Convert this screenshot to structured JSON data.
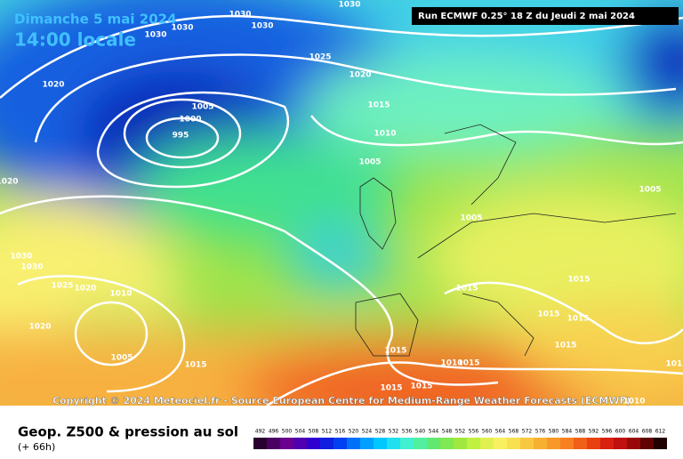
{
  "header": {
    "date": "Dimanche 5 mai 2024",
    "time": "14:00 locale",
    "run": "Run ECMWF 0.25° 18 Z du Jeudi 2 mai 2024"
  },
  "copyright": "Copyright © 2024 Meteociel.fr - Source European Centre for Medium-Range Weather Forecasts (ECMWF)",
  "footer": {
    "title": "Geop. Z500 & pression au sol",
    "lead": "(+ 66h)"
  },
  "isobar_labels": [
    "1030",
    "1030",
    "1030",
    "1030",
    "1030",
    "1025",
    "1020",
    "1020",
    "1005",
    "1000",
    "995",
    "1015",
    "1010",
    "1005",
    "1005",
    "1005",
    "1020",
    "1030",
    "1030",
    "1025",
    "1020",
    "1010",
    "1020",
    "1005",
    "1015",
    "1015",
    "1015",
    "1015",
    "1015",
    "1015",
    "1015",
    "1010",
    "1015",
    "1015",
    "1015",
    "1015",
    "1010",
    "1015"
  ],
  "colorbar_labels": [
    492,
    496,
    500,
    504,
    508,
    512,
    516,
    520,
    524,
    528,
    532,
    536,
    540,
    544,
    548,
    552,
    556,
    560,
    564,
    568,
    572,
    576,
    580,
    584,
    588,
    592,
    596,
    600,
    604,
    608,
    612
  ]
}
